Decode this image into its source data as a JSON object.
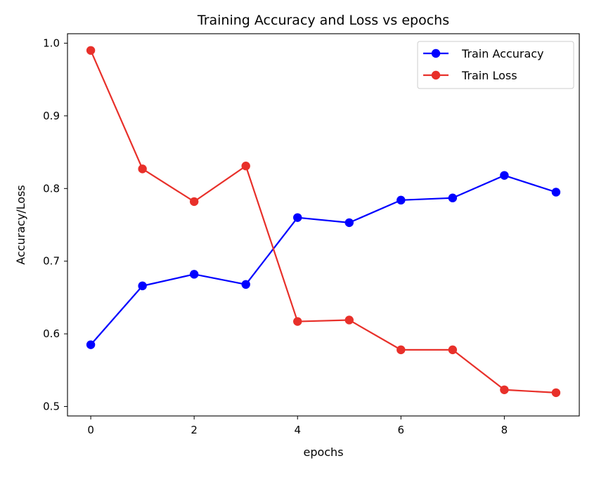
{
  "chart_data": {
    "type": "line",
    "title": "Training Accuracy and Loss vs epochs",
    "xlabel": "epochs",
    "ylabel": "Accuracy/Loss",
    "x": [
      0,
      1,
      2,
      3,
      4,
      5,
      6,
      7,
      8,
      9
    ],
    "xlim": [
      -0.45,
      9.45
    ],
    "ylim": [
      0.487,
      1.013
    ],
    "xticks": [
      0,
      2,
      4,
      6,
      8
    ],
    "xtick_labels": [
      "0",
      "2",
      "4",
      "6",
      "8"
    ],
    "yticks": [
      0.5,
      0.6,
      0.7,
      0.8,
      0.9,
      1.0
    ],
    "ytick_labels": [
      "0.5",
      "0.6",
      "0.7",
      "0.8",
      "0.9",
      "1.0"
    ],
    "grid": false,
    "legend_position": "top-right",
    "series": [
      {
        "name": "Train Accuracy",
        "color": "#0000ff",
        "marker": "circle",
        "values": [
          0.585,
          0.666,
          0.682,
          0.668,
          0.76,
          0.753,
          0.784,
          0.787,
          0.818,
          0.795
        ]
      },
      {
        "name": "Train Loss",
        "color": "#e8302a",
        "marker": "circle",
        "values": [
          0.99,
          0.827,
          0.782,
          0.831,
          0.617,
          0.619,
          0.578,
          0.578,
          0.523,
          0.519
        ]
      }
    ]
  }
}
